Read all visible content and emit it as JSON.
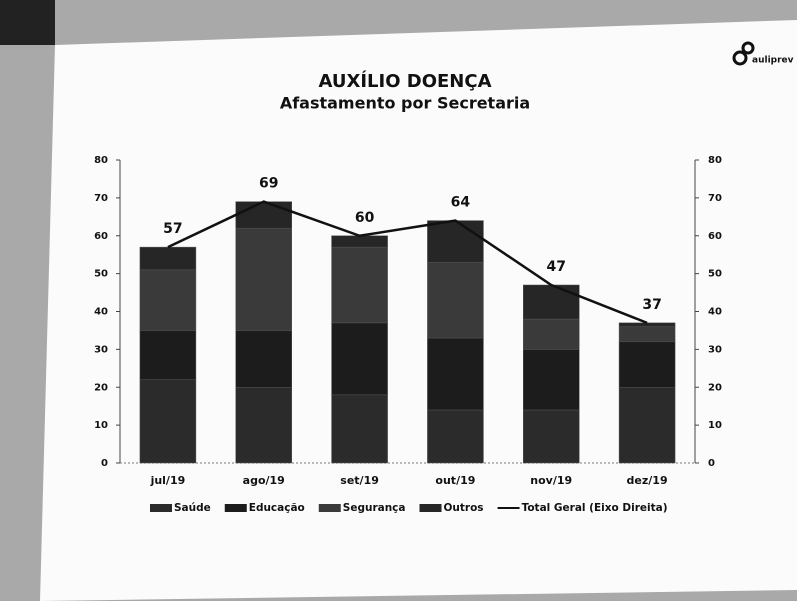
{
  "brand": "auliprev",
  "chart_data": {
    "type": "bar",
    "title": "AUXÍLIO DOENÇA",
    "subtitle": "Afastamento por Secretaria",
    "stacked": true,
    "categories": [
      "jul/19",
      "ago/19",
      "set/19",
      "out/19",
      "nov/19",
      "dez/19"
    ],
    "series": [
      {
        "name": "Saúde",
        "color": "#2b2b2b",
        "values": [
          22,
          20,
          18,
          14,
          14,
          20
        ]
      },
      {
        "name": "Educação",
        "color": "#1c1c1c",
        "values": [
          13,
          15,
          19,
          19,
          16,
          12
        ]
      },
      {
        "name": "Segurança",
        "color": "#3a3a3a",
        "values": [
          16,
          27,
          20,
          20,
          8,
          4
        ]
      },
      {
        "name": "Outros",
        "color": "#262626",
        "values": [
          6,
          7,
          3,
          11,
          9,
          1
        ]
      },
      {
        "name": "Total Geral (Eixo Direita)",
        "type": "line",
        "axis": "y2",
        "color": "#111111",
        "values": [
          57,
          69,
          60,
          64,
          47,
          37
        ],
        "show_labels": true
      }
    ],
    "ylim": [
      0,
      80
    ],
    "yticks": [
      0,
      10,
      20,
      30,
      40,
      50,
      60,
      70,
      80
    ],
    "y2lim": [
      0,
      80
    ],
    "y2ticks": [
      0,
      10,
      20,
      30,
      40,
      50,
      60,
      70,
      80
    ],
    "grid": false,
    "legend": "bottom"
  }
}
